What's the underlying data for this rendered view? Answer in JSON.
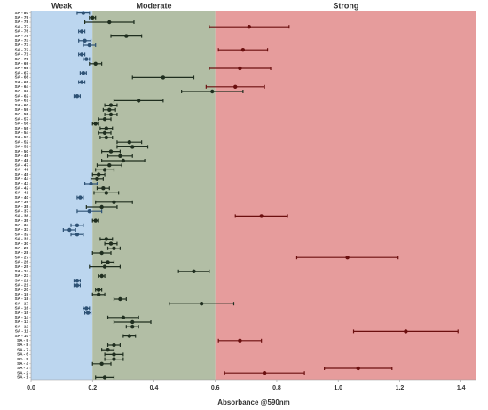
{
  "chart_data": {
    "type": "dot-errorbar",
    "x_label": "Absorbance @590nm",
    "categories": [
      "SA - 1",
      "SA - 2",
      "SA - 3",
      "SA - 4",
      "SA - 5",
      "SA - 6",
      "SA - 7",
      "SA - 8",
      "SA - 9",
      "SA - 10",
      "SA - 11",
      "SA - 12",
      "SA - 13",
      "SA - 14",
      "SA - 15",
      "SA - 16",
      "SA - 17",
      "SA - 18",
      "SA - 19",
      "SA - 20",
      "SA - 21",
      "SA - 22",
      "SA - 23",
      "SA - 24",
      "SA - 25",
      "SA - 26",
      "SA - 27",
      "SA - 28",
      "SA - 29",
      "SA - 30",
      "SA - 31",
      "SA - 32",
      "SA - 33",
      "SA - 34",
      "SA - 35",
      "SA - 36",
      "SA - 37",
      "SA - 38",
      "SA - 39",
      "SA - 40",
      "SA - 41",
      "SA - 42",
      "SA - 43",
      "SA - 44",
      "SA - 45",
      "SA - 46",
      "SA - 47",
      "SA - 48",
      "SA - 49",
      "SA - 50",
      "SA - 51",
      "SA - 52",
      "SA - 53",
      "SA - 54",
      "SA - 55",
      "SA - 56",
      "SA - 57",
      "SA - 58",
      "SA - 59",
      "SA - 60",
      "SA - 61",
      "SA - 62",
      "SA - 63",
      "SA - 64",
      "SA - 65",
      "SA - 66",
      "SA - 67",
      "SA - 68",
      "SA - 69",
      "SA - 70",
      "SA - 71",
      "SA - 72",
      "SA - 73",
      "SA - 74",
      "SA - 75",
      "SA - 76",
      "SA - 77",
      "SA - 78",
      "SA - 79",
      "SA - 80"
    ],
    "values": [
      0.24,
      0.76,
      1.065,
      0.23,
      0.27,
      0.27,
      0.25,
      0.27,
      0.68,
      0.32,
      1.22,
      0.33,
      0.33,
      0.3,
      0.185,
      0.18,
      0.555,
      0.29,
      0.22,
      0.22,
      0.15,
      0.15,
      0.23,
      0.53,
      0.24,
      0.25,
      1.03,
      0.23,
      0.27,
      0.26,
      0.245,
      0.15,
      0.125,
      0.15,
      0.21,
      0.75,
      0.19,
      0.23,
      0.27,
      0.16,
      0.245,
      0.235,
      0.195,
      0.215,
      0.22,
      0.24,
      0.255,
      0.3,
      0.29,
      0.26,
      0.33,
      0.32,
      0.245,
      0.24,
      0.245,
      0.21,
      0.24,
      0.26,
      0.255,
      0.26,
      0.35,
      0.15,
      0.59,
      0.665,
      0.165,
      0.43,
      0.17,
      0.68,
      0.21,
      0.18,
      0.165,
      0.69,
      0.19,
      0.175,
      0.31,
      0.165,
      0.71,
      0.255,
      0.2,
      0.17
    ],
    "errors": [
      0.03,
      0.13,
      0.11,
      0.03,
      0.03,
      0.03,
      0.02,
      0.02,
      0.07,
      0.02,
      0.17,
      0.02,
      0.06,
      0.05,
      0.01,
      0.01,
      0.105,
      0.02,
      0.02,
      0.01,
      0.01,
      0.01,
      0.01,
      0.05,
      0.05,
      0.02,
      0.165,
      0.03,
      0.02,
      0.02,
      0.02,
      0.02,
      0.02,
      0.02,
      0.01,
      0.085,
      0.04,
      0.05,
      0.06,
      0.01,
      0.04,
      0.02,
      0.02,
      0.02,
      0.02,
      0.03,
      0.04,
      0.07,
      0.04,
      0.03,
      0.05,
      0.04,
      0.02,
      0.02,
      0.02,
      0.01,
      0.02,
      0.02,
      0.02,
      0.02,
      0.08,
      0.01,
      0.1,
      0.095,
      0.01,
      0.1,
      0.01,
      0.1,
      0.02,
      0.01,
      0.01,
      0.08,
      0.02,
      0.02,
      0.05,
      0.01,
      0.13,
      0.08,
      0.01,
      0.02
    ],
    "regions": [
      {
        "name": "Weak",
        "range": [
          0,
          0.2
        ],
        "color": "#bcd6ef",
        "mark_color": "#2e5275"
      },
      {
        "name": "Moderate",
        "range": [
          0.2,
          0.6
        ],
        "color": "#b2bea5",
        "mark_color": "#1f2e1f"
      },
      {
        "name": "Strong",
        "range": [
          0.6,
          1.45
        ],
        "color": "#e69c9c",
        "mark_color": "#6b0f0f"
      }
    ],
    "xlim": [
      0,
      1.45
    ],
    "xticks": [
      {
        "value": 0,
        "label": "0.0"
      },
      0.2,
      0.4,
      0.6,
      0.8,
      {
        "value": 1,
        "label": "1.0"
      },
      1.2,
      1.4
    ]
  }
}
